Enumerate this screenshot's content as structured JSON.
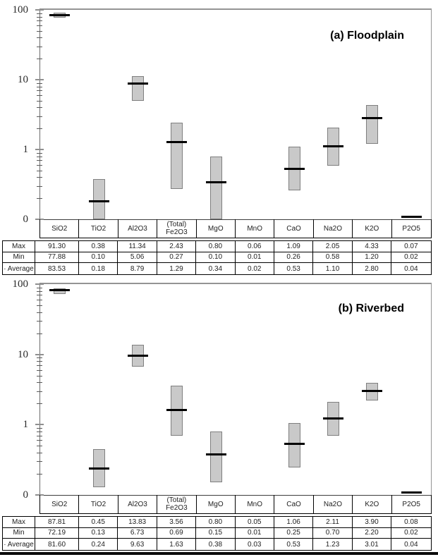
{
  "colors": {
    "box_fill": "#c9c9c9",
    "box_border": "#7f7f7f",
    "average_line": "#000000",
    "plot_frame": "#949494",
    "axis": "#595959",
    "table_border": "#000000"
  },
  "y_axis": {
    "scale": "log",
    "min": 0.1,
    "max": 100,
    "tick_labels": [
      "100",
      "10",
      "1",
      "0"
    ]
  },
  "chart_data": [
    {
      "type": "bar",
      "subtype": "floating-range-box-with-average-dash",
      "title": "(a) Floodplain",
      "categories": [
        "SiO2",
        "TiO2",
        "Al2O3",
        "(Total)\nFe2O3",
        "MgO",
        "MnO",
        "CaO",
        "Na2O",
        "K2O",
        "P2O5"
      ],
      "series": [
        {
          "name": "Max",
          "values": [
            "91.30",
            "0.38",
            "11.34",
            "2.43",
            "0.80",
            "0.06",
            "1.09",
            "2.05",
            "4.33",
            "0.07"
          ]
        },
        {
          "name": "Min",
          "values": [
            "77.88",
            "0.10",
            "5.06",
            "0.27",
            "0.10",
            "0.01",
            "0.26",
            "0.58",
            "1.20",
            "0.02"
          ]
        },
        {
          "name": "· Average",
          "values": [
            "83.53",
            "0.18",
            "8.79",
            "1.29",
            "0.34",
            "0.02",
            "0.53",
            "1.10",
            "2.80",
            "0.04"
          ]
        }
      ],
      "ylim": [
        0.1,
        100
      ],
      "yticks": [
        "100",
        "10",
        "1",
        "0"
      ],
      "grid": false,
      "legend": "table below chart",
      "clipped_average_dash_columns": [
        9
      ]
    },
    {
      "type": "bar",
      "subtype": "floating-range-box-with-average-dash",
      "title": "(b) Riverbed",
      "categories": [
        "SiO2",
        "TiO2",
        "Al2O3",
        "(Total)\nFe2O3",
        "MgO",
        "MnO",
        "CaO",
        "Na2O",
        "K2O",
        "P2O5"
      ],
      "series": [
        {
          "name": "Max",
          "values": [
            "87.81",
            "0.45",
            "13.83",
            "3.56",
            "0.80",
            "0.05",
            "1.06",
            "2.11",
            "3.90",
            "0.08"
          ]
        },
        {
          "name": "Min",
          "values": [
            "72.19",
            "0.13",
            "6.73",
            "0.69",
            "0.15",
            "0.01",
            "0.25",
            "0.70",
            "2.20",
            "0.02"
          ]
        },
        {
          "name": "· Average",
          "values": [
            "81.60",
            "0.24",
            "9.63",
            "1.63",
            "0.38",
            "0.03",
            "0.53",
            "1.23",
            "3.01",
            "0.04"
          ]
        }
      ],
      "ylim": [
        0.1,
        100
      ],
      "yticks": [
        "100",
        "10",
        "1",
        "0"
      ],
      "grid": false,
      "legend": "table below chart",
      "clipped_average_dash_columns": [
        9
      ]
    }
  ]
}
